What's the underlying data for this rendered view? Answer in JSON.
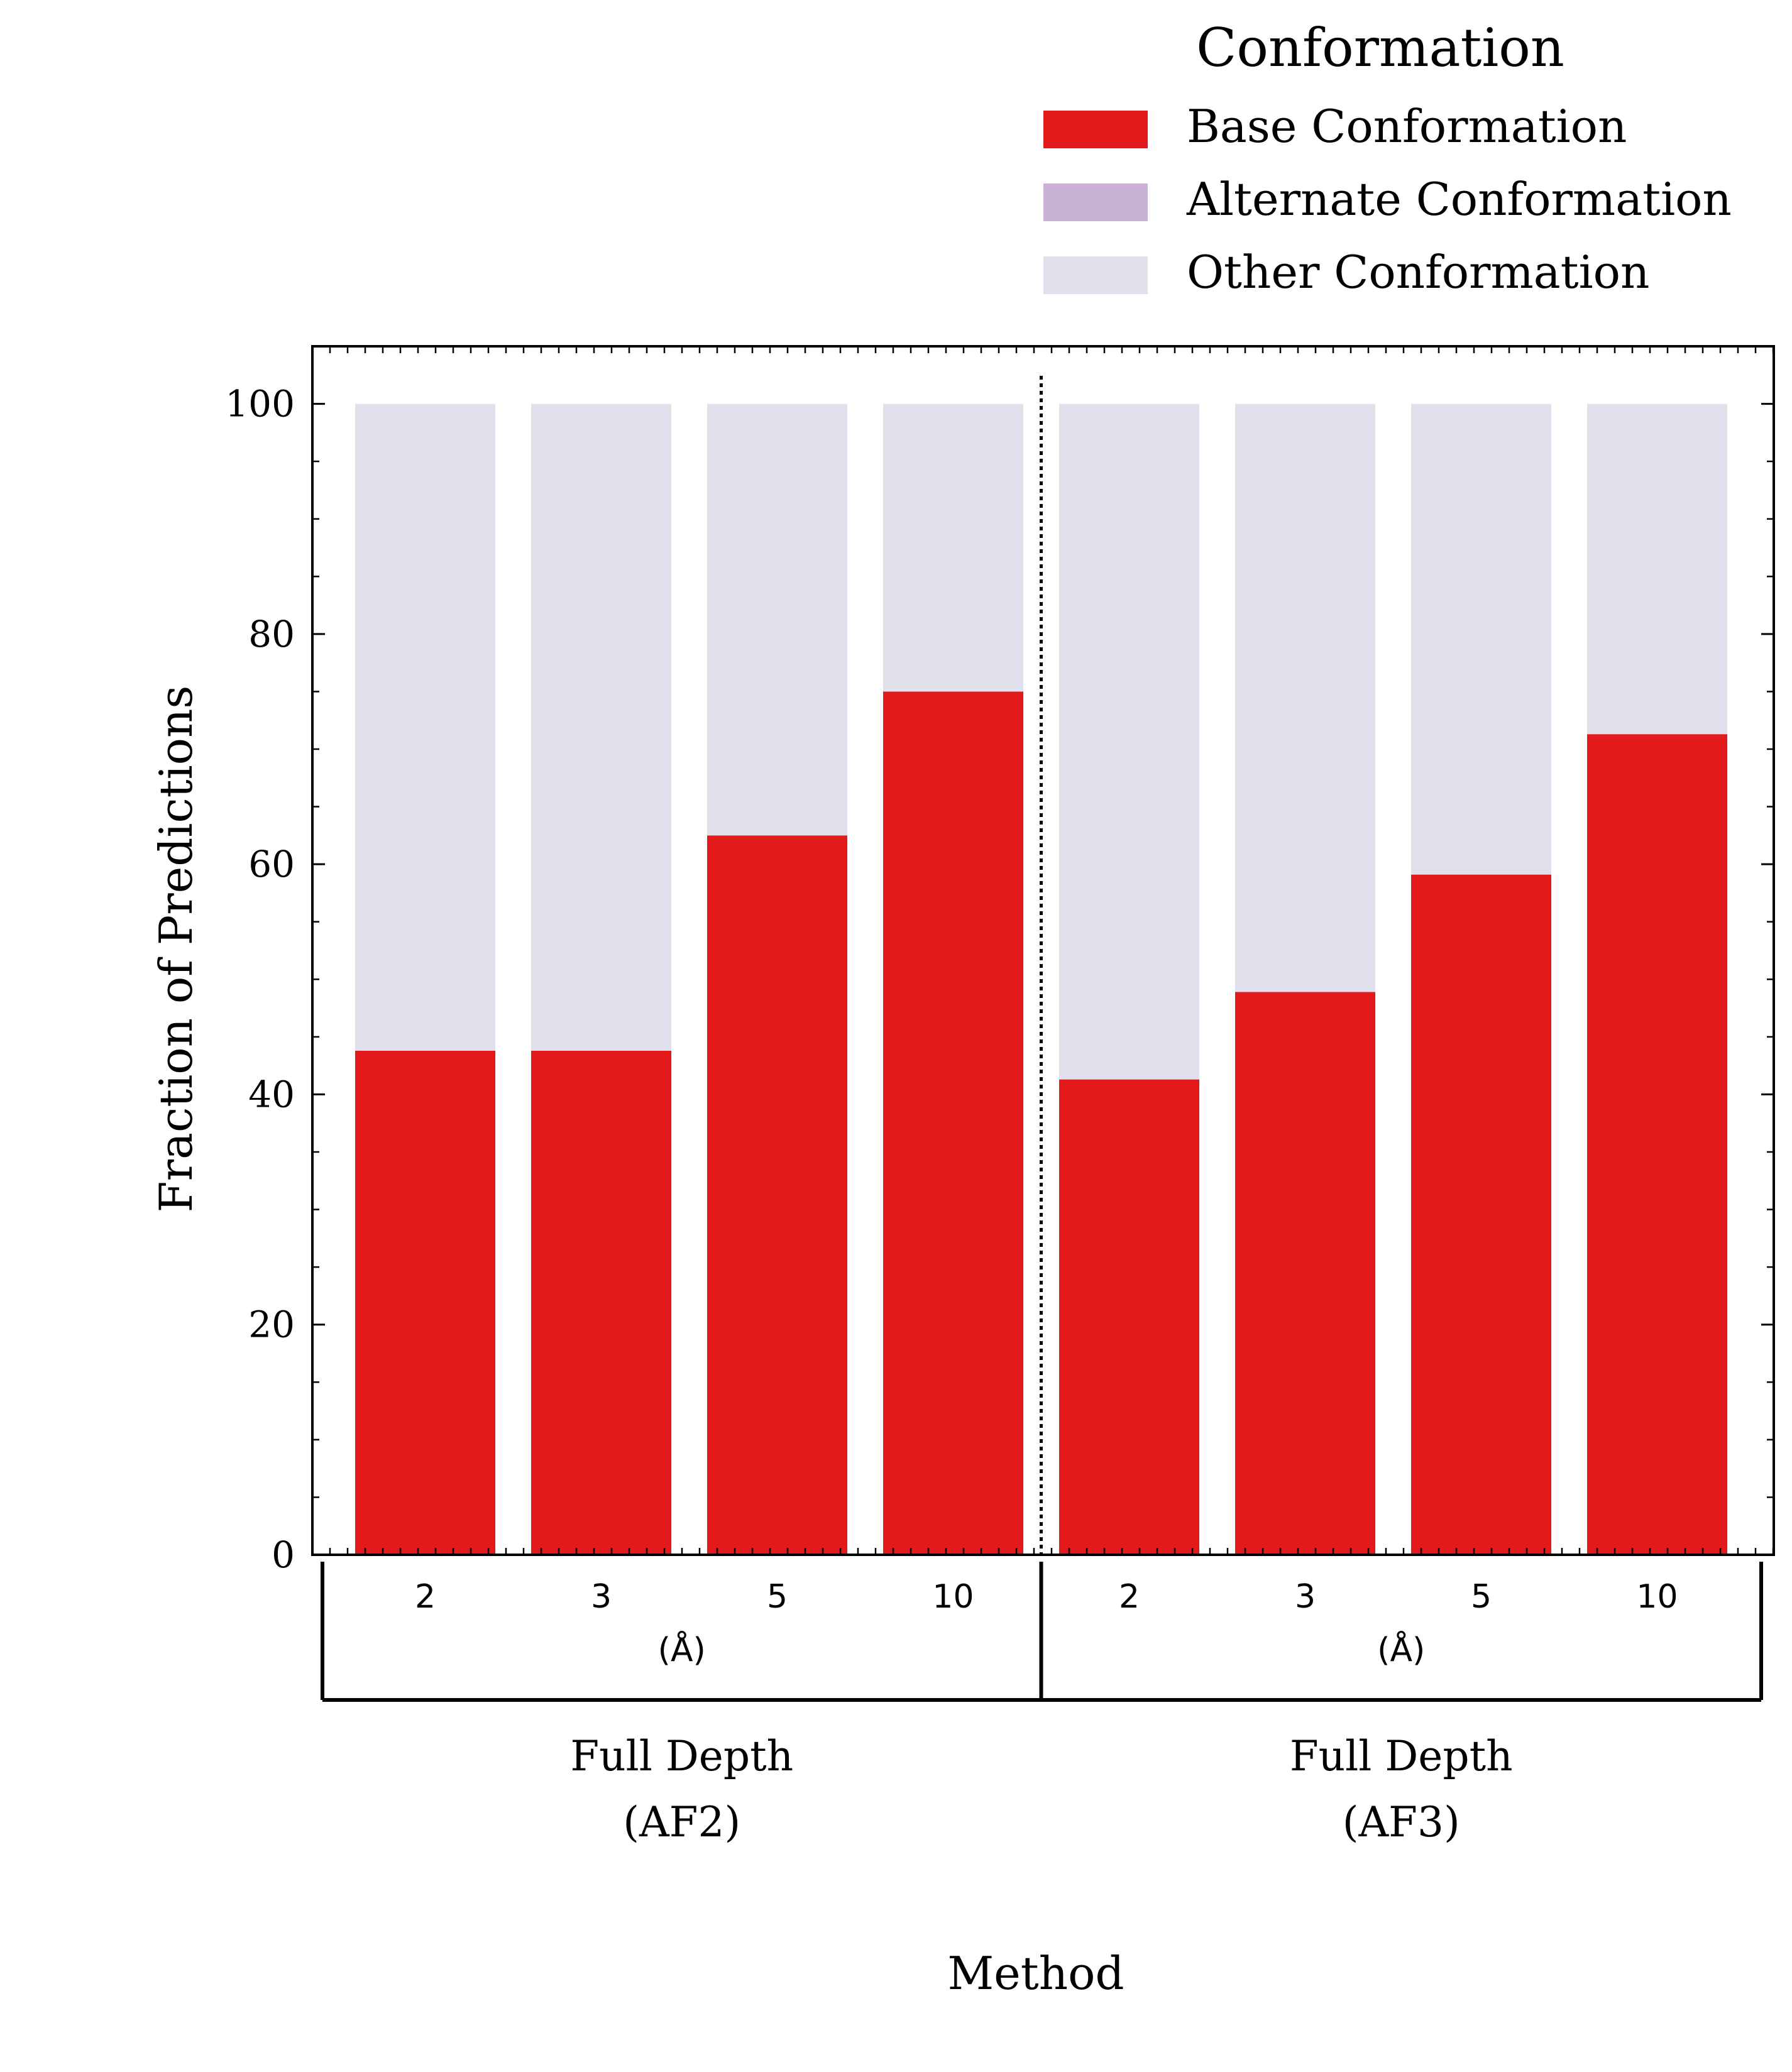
{
  "chart_data": {
    "type": "bar",
    "stacked": true,
    "ylabel": "Fraction of Predictions",
    "xlabel": "Method",
    "ylim": [
      0,
      105
    ],
    "yticks": [
      0,
      20,
      40,
      60,
      80,
      100
    ],
    "grid": false,
    "legend": {
      "title": "Conformation",
      "placement": "top-right",
      "entries": [
        {
          "label": "Base Conformation",
          "color": "#e31a1c"
        },
        {
          "label": "Alternate Conformation",
          "color": "#cab2d6"
        },
        {
          "label": "Other Conformation",
          "color": "#e1e1ed"
        }
      ]
    },
    "groups": [
      {
        "label_line1": "Full Depth",
        "label_line2": "(AF2)",
        "unit": "(Å)",
        "categories": [
          "2",
          "3",
          "5",
          "10"
        ]
      },
      {
        "label_line1": "Full Depth",
        "label_line2": "(AF3)",
        "unit": "(Å)",
        "categories": [
          "2",
          "3",
          "5",
          "10"
        ]
      }
    ],
    "categories": [
      "2",
      "3",
      "5",
      "10",
      "2",
      "3",
      "5",
      "10"
    ],
    "series": [
      {
        "name": "Base Conformation",
        "color": "#e31a1c",
        "values": [
          43.8,
          43.8,
          62.5,
          75.0,
          41.3,
          48.9,
          59.1,
          71.3
        ]
      },
      {
        "name": "Alternate Conformation",
        "color": "#cab2d6",
        "values": [
          0,
          0,
          0,
          0,
          0,
          0,
          0,
          0
        ]
      },
      {
        "name": "Other Conformation",
        "color": "#e1e1ed",
        "values": [
          56.2,
          56.2,
          37.5,
          25.0,
          58.7,
          51.1,
          40.9,
          28.7
        ]
      }
    ]
  }
}
